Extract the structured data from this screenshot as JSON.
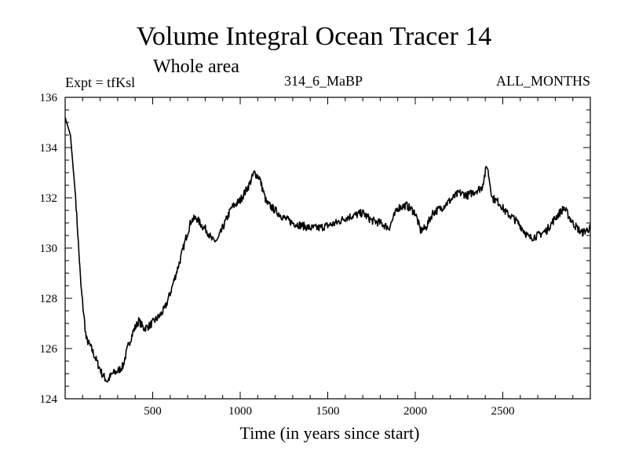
{
  "chart_data": {
    "type": "line",
    "title": "Volume Integral Ocean Tracer 14",
    "subtitle": "Whole area",
    "expt_label": "Expt = tfKsl",
    "center_label": "314_6_MaBP",
    "right_label": "ALL_MONTHS",
    "xlabel": "Time (in years since start)",
    "ylabel": "",
    "xlim": [
      0,
      3000
    ],
    "ylim": [
      124,
      136
    ],
    "xticks": [
      500,
      1000,
      1500,
      2000,
      2500
    ],
    "yticks": [
      124,
      126,
      128,
      130,
      132,
      134,
      136
    ],
    "grid": false,
    "series": [
      {
        "color": "#000000",
        "x": [
          0,
          30,
          60,
          90,
          120,
          150,
          180,
          210,
          240,
          270,
          300,
          330,
          360,
          390,
          420,
          450,
          480,
          510,
          540,
          570,
          600,
          630,
          660,
          690,
          720,
          750,
          780,
          810,
          840,
          870,
          900,
          950,
          1000,
          1050,
          1080,
          1110,
          1150,
          1200,
          1250,
          1300,
          1350,
          1400,
          1450,
          1500,
          1550,
          1600,
          1650,
          1700,
          1750,
          1800,
          1850,
          1900,
          1950,
          2000,
          2030,
          2060,
          2100,
          2150,
          2200,
          2250,
          2300,
          2350,
          2380,
          2410,
          2440,
          2480,
          2520,
          2560,
          2600,
          2650,
          2700,
          2750,
          2800,
          2850,
          2900,
          2950,
          3000
        ],
        "y": [
          135.2,
          134.5,
          132.0,
          128.5,
          126.4,
          126.0,
          125.5,
          125.0,
          124.7,
          125.0,
          125.1,
          125.3,
          126.1,
          126.7,
          127.1,
          126.8,
          126.9,
          127.1,
          127.3,
          127.6,
          128.2,
          128.9,
          129.6,
          130.4,
          131.1,
          131.2,
          130.9,
          130.7,
          130.3,
          130.3,
          130.8,
          131.6,
          131.9,
          132.5,
          133.0,
          132.8,
          131.8,
          131.5,
          131.2,
          131.0,
          130.9,
          130.8,
          130.8,
          130.9,
          131.0,
          131.2,
          131.3,
          131.4,
          131.1,
          131.0,
          130.8,
          131.6,
          131.7,
          131.4,
          130.7,
          130.8,
          131.4,
          131.6,
          131.9,
          132.2,
          132.1,
          132.3,
          132.4,
          133.3,
          132.0,
          131.8,
          131.4,
          131.2,
          130.9,
          130.4,
          130.5,
          130.7,
          131.2,
          131.6,
          131.0,
          130.6,
          130.8
        ]
      }
    ]
  }
}
